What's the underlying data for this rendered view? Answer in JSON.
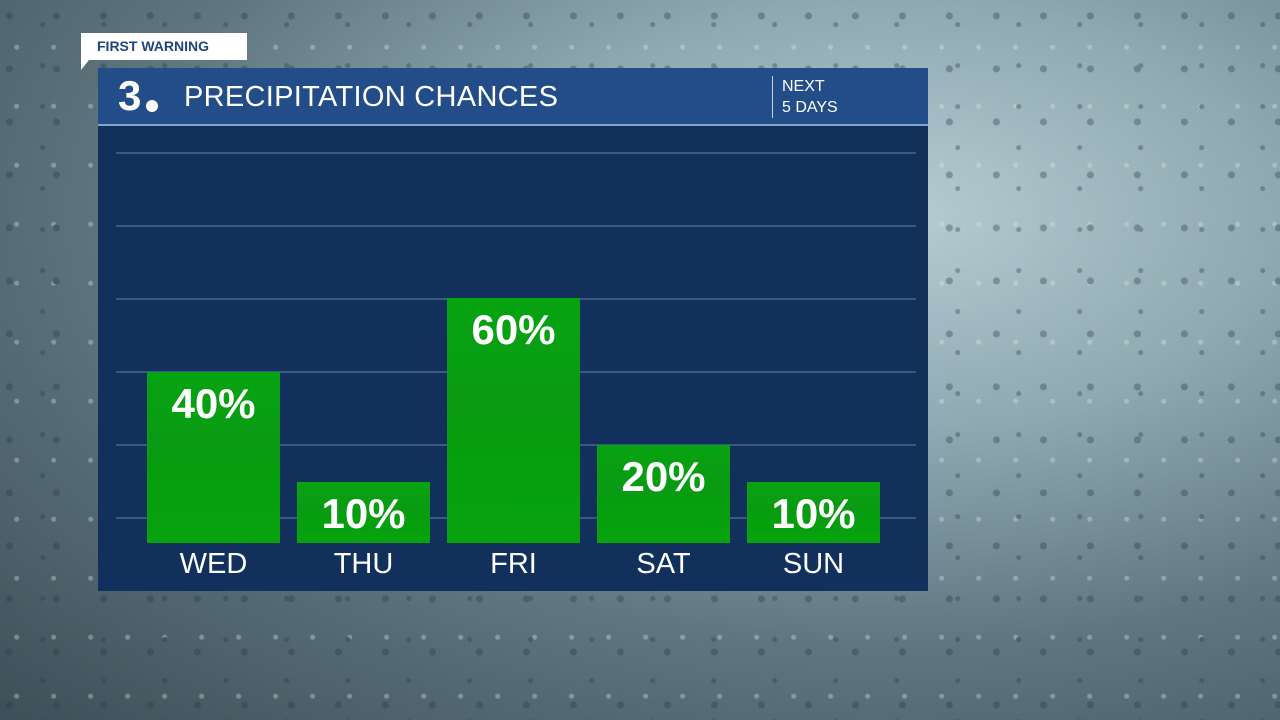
{
  "badge": "FIRST WARNING",
  "header": {
    "logo": "3",
    "title": "PRECIPITATION CHANCES",
    "subtitle_line1": "NEXT",
    "subtitle_line2": "5 DAYS"
  },
  "colors": {
    "bar": "#06a410",
    "header": "#234d88",
    "panel": "#12305c"
  },
  "chart_data": {
    "type": "bar",
    "title": "PRECIPITATION CHANCES",
    "categories": [
      "WED",
      "THU",
      "FRI",
      "SAT",
      "SUN"
    ],
    "values": [
      40,
      10,
      60,
      20,
      10
    ],
    "labels": [
      "40%",
      "10%",
      "60%",
      "20%",
      "10%"
    ],
    "unit": "%",
    "grid": true
  }
}
